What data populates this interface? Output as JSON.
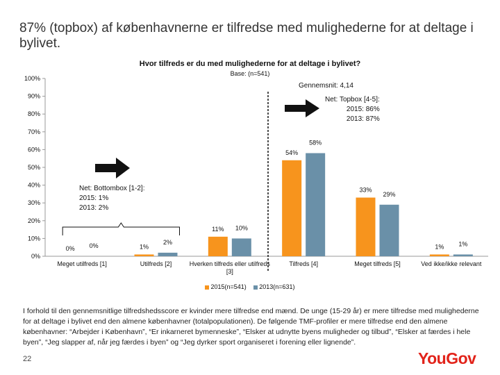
{
  "slide": {
    "title": "87% (topbox) af københavnerne er tilfredse med mulighederne for at deltage i bylivet.",
    "page_number": "22",
    "logo_text": "YouGov",
    "footnote": "I forhold til den gennemsnitlige tilfredshedsscore er kvinder mere tilfredse end mænd. De unge (15-29 år) er mere tilfredse med mulighederne for at deltage i bylivet end den almene københavner (totalpopulationen). De følgende TMF-profiler er mere tilfredse end den almene københavner: “Arbejder i København”, “Er inkarneret bymenneske”, “Elsker at udnytte byens muligheder og tilbud”, “Elsker at færdes i hele byen”, “Jeg slapper af, når jeg færdes i byen” og “Jeg dyrker sport organiseret i forening eller lignende”."
  },
  "annotations": {
    "average": "Gennemsnit: 4,14",
    "net_top_title": "Net: Topbox [4-5]:",
    "net_top_2015": "2015: 86%",
    "net_top_2013": "2013: 87%",
    "net_bottom_title": "Net: Bottombox [1-2]:",
    "net_bottom_2015": "2015: 1%",
    "net_bottom_2013": "2013: 2%"
  },
  "colors": {
    "series_2015": "#f7941d",
    "series_2013": "#6a90a8",
    "arrow": "#111111",
    "logo": "#e2231a"
  },
  "chart_data": {
    "type": "bar",
    "title": "Hvor tilfreds er du med mulighederne for at deltage i bylivet?",
    "subtitle": "Base: (n=541)",
    "categories": [
      "Meget utilfreds [1]",
      "Utilfreds [2]",
      "Hverken tilfreds eller utilfreds [3]",
      "Tilfreds [4]",
      "Meget tilfreds [5]",
      "Ved ikke/ikke relevant"
    ],
    "series": [
      {
        "name": "2015(n=541)",
        "values": [
          0,
          1,
          11,
          54,
          33,
          1
        ],
        "labels": [
          "0%",
          "1%",
          "11%",
          "54%",
          "33%",
          "1%"
        ]
      },
      {
        "name": "2013(n=631)",
        "values": [
          0,
          2,
          10,
          58,
          29,
          1
        ],
        "labels": [
          "0%",
          "2%",
          "10%",
          "58%",
          "29%",
          "1%"
        ]
      }
    ],
    "yticks": [
      "0%",
      "10%",
      "20%",
      "30%",
      "40%",
      "50%",
      "60%",
      "70%",
      "80%",
      "90%",
      "100%"
    ],
    "ylim": [
      0,
      100
    ],
    "grid": false,
    "legend_position": "bottom"
  }
}
